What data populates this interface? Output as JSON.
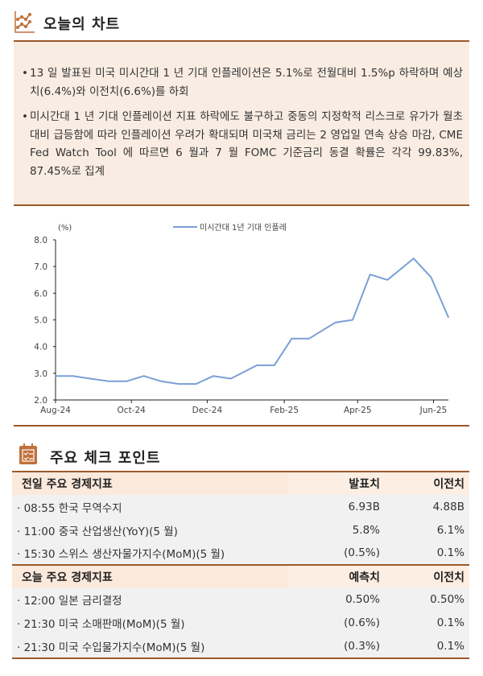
{
  "chart_section": {
    "title": "오늘의 차트",
    "icon": "line-chart-icon",
    "bullets": [
      "13 일 발표된 미국 미시간대 1 년 기대 인플레이션은 5.1%로 전월대비 1.5%p 하락하며 예상치(6.4%)와 이전치(6.6%)를 하회",
      "미시간대 1 년 기대 인플레이션 지표 하락에도 불구하고 중동의 지정학적 리스크로 유가가 월초대비 급등함에 따라 인플레이션 우려가 확대되며 미국채 금리는 2 영업일 연속 상승 마감, CME Fed Watch Tool 에 따르면 6 월과 7 월 FOMC 기준금리 동결 확률은 각각 99.83%, 87.45%로 집계"
    ]
  },
  "chart_data": {
    "type": "line",
    "ylabel": "(%)",
    "ylim": [
      2.0,
      8.0
    ],
    "yticks": [
      "8.0",
      "7.0",
      "6.0",
      "5.0",
      "4.0",
      "3.0",
      "2.0"
    ],
    "xlim": [
      "2024-08-01",
      "2025-06-13"
    ],
    "xticks": [
      {
        "date": "2024-08-01",
        "label": "Aug-24"
      },
      {
        "date": "2024-10-01",
        "label": "Oct-24"
      },
      {
        "date": "2024-12-01",
        "label": "Dec-24"
      },
      {
        "date": "2025-02-01",
        "label": "Feb-25"
      },
      {
        "date": "2025-04-01",
        "label": "Apr-25"
      },
      {
        "date": "2025-06-01",
        "label": "Jun-25"
      }
    ],
    "legend_position": "top-center",
    "grid": false,
    "series": [
      {
        "name": "미시간대 1년 기대 인플레",
        "color": "#7a9fd6",
        "x": [
          "2024-08-01",
          "2024-08-15",
          "2024-08-29",
          "2024-09-13",
          "2024-09-27",
          "2024-10-11",
          "2024-10-25",
          "2024-11-08",
          "2024-11-22",
          "2024-12-06",
          "2024-12-20",
          "2025-01-10",
          "2025-01-24",
          "2025-02-07",
          "2025-02-21",
          "2025-03-14",
          "2025-03-28",
          "2025-04-11",
          "2025-04-25",
          "2025-05-16",
          "2025-05-30",
          "2025-06-13"
        ],
        "y": [
          2.9,
          2.9,
          2.8,
          2.7,
          2.7,
          2.9,
          2.7,
          2.6,
          2.6,
          2.9,
          2.8,
          3.3,
          3.3,
          4.3,
          4.3,
          4.9,
          5.0,
          6.7,
          6.5,
          7.3,
          6.6,
          5.1
        ]
      }
    ]
  },
  "checkpoint_section": {
    "title": "주요 체크 포인트",
    "icon": "calendar-checklist-icon",
    "tables": [
      {
        "header": [
          "전일 주요 경제지표",
          "발표치",
          "이전치"
        ],
        "rows": [
          [
            "· 08:55 한국 무역수지",
            "6.93B",
            "4.88B"
          ],
          [
            "· 11:00 중국 산업생산(YoY)(5 월)",
            "5.8%",
            "6.1%"
          ],
          [
            "· 15:30 스위스 생산자물가지수(MoM)(5 월)",
            "(0.5%)",
            "0.1%"
          ]
        ]
      },
      {
        "header": [
          "오늘 주요 경제지표",
          "예측치",
          "이전치"
        ],
        "rows": [
          [
            "· 12:00 일본 금리결정",
            "0.50%",
            "0.50%"
          ],
          [
            "· 21:30 미국 소매판매(MoM)(5 월)",
            "(0.6%)",
            "0.1%"
          ],
          [
            "· 21:30 미국 수입물가지수(MoM)(5 월)",
            "(0.3%)",
            "0.1%"
          ]
        ]
      }
    ]
  },
  "colors": {
    "accent": "#9a5a2a",
    "icon": "#c0713a",
    "box_bg": "#f9ede3",
    "header_bg": "#fbe9dc",
    "row_bg": "#f1f1f1"
  }
}
